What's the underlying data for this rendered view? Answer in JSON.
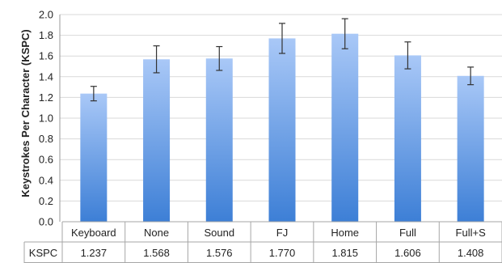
{
  "chart_data": {
    "type": "bar",
    "ylabel": "Keystrokes Per Character (KSPC)",
    "ylim": [
      0,
      2.0
    ],
    "yticks": [
      "0.0",
      "0.2",
      "0.4",
      "0.6",
      "0.8",
      "1.0",
      "1.2",
      "1.4",
      "1.6",
      "1.8",
      "2.0"
    ],
    "grid": true,
    "categories": [
      "Keyboard",
      "None",
      "Sound",
      "FJ",
      "Home",
      "Full",
      "Full+S"
    ],
    "values": [
      1.237,
      1.568,
      1.576,
      1.77,
      1.815,
      1.606,
      1.408
    ],
    "error": [
      0.07,
      0.13,
      0.115,
      0.145,
      0.145,
      0.13,
      0.085
    ],
    "bar_color_top": "#a9c8f7",
    "bar_color_bottom": "#3d7fd6",
    "table": {
      "row_label": "KSPC",
      "values": [
        "1.237",
        "1.568",
        "1.576",
        "1.770",
        "1.815",
        "1.606",
        "1.408"
      ]
    }
  }
}
